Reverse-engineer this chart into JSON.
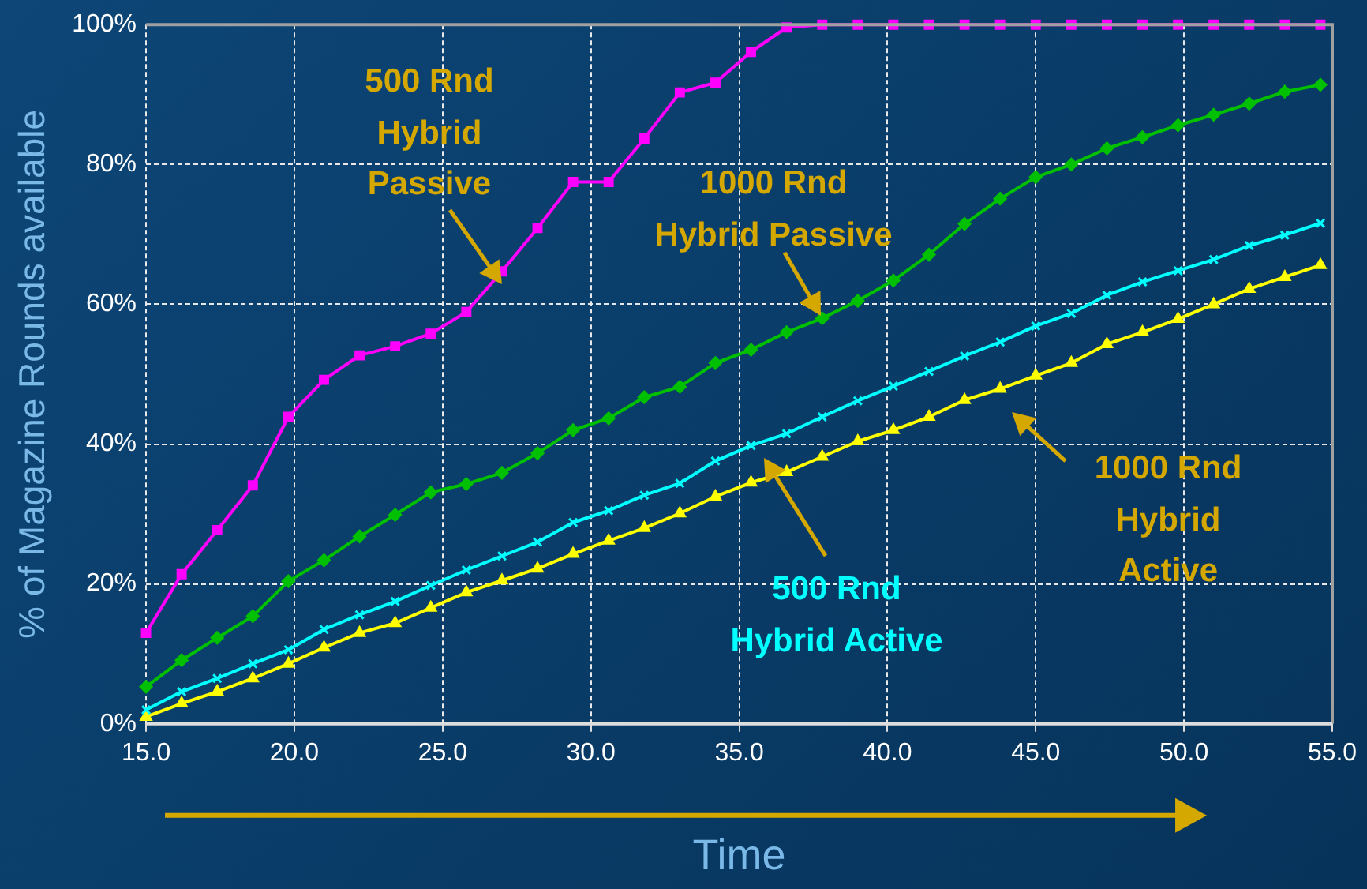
{
  "chart_data": {
    "type": "line",
    "xlabel": "Time",
    "ylabel": "% of Magazine Rounds available",
    "x": [
      15,
      16.2,
      17.4,
      18.6,
      19.8,
      21,
      22.2,
      23.4,
      24.6,
      25.8,
      27,
      28.2,
      29.4,
      30.6,
      31.8,
      33,
      34.2,
      35.4,
      36.6,
      37.8,
      39,
      40.2,
      41.4,
      42.6,
      43.8,
      45,
      46.2,
      47.4,
      48.6,
      49.8,
      51,
      52.2,
      53.4,
      54.6
    ],
    "series": [
      {
        "name": "500 Rnd Hybrid Passive",
        "color": "#ff00ff",
        "marker": "square",
        "values": [
          13,
          21.4,
          27.7,
          34.1,
          43.9,
          49.2,
          52.7,
          54,
          55.8,
          58.9,
          64.7,
          70.9,
          77.5,
          77.5,
          83.7,
          90.3,
          91.7,
          96.1,
          99.6,
          100,
          100,
          100,
          100,
          100,
          100,
          100,
          100,
          100,
          100,
          100,
          100,
          100,
          100,
          100
        ]
      },
      {
        "name": "1000 Rnd Hybrid Passive",
        "color": "#00c000",
        "marker": "diamond",
        "values": [
          5.3,
          9.1,
          12.3,
          15.4,
          20.4,
          23.4,
          26.8,
          29.9,
          33.1,
          34.3,
          35.9,
          38.7,
          42,
          43.7,
          46.7,
          48.2,
          51.6,
          53.5,
          56,
          58,
          60.5,
          63.4,
          67.1,
          71.5,
          75.1,
          78.2,
          80,
          82.3,
          83.9,
          85.6,
          87.1,
          88.7,
          90.4,
          91.4
        ]
      },
      {
        "name": "500 Rnd Hybrid Active",
        "color": "#00ffff",
        "marker": "cross",
        "values": [
          2,
          4.6,
          6.5,
          8.6,
          10.6,
          13.5,
          15.6,
          17.5,
          19.8,
          22,
          24,
          26,
          28.8,
          30.5,
          32.7,
          34.4,
          37.6,
          39.8,
          41.5,
          43.9,
          46.2,
          48.3,
          50.4,
          52.6,
          54.6,
          56.9,
          58.7,
          61.3,
          63.2,
          64.8,
          66.4,
          68.4,
          69.9,
          71.6
        ]
      },
      {
        "name": "1000 Rnd Hybrid Active",
        "color": "#ffff00",
        "marker": "triangle",
        "values": [
          1,
          2.9,
          4.6,
          6.5,
          8.6,
          10.9,
          13,
          14.4,
          16.6,
          18.8,
          20.5,
          22.2,
          24.3,
          26.2,
          28,
          30.1,
          32.5,
          34.5,
          36,
          38.2,
          40.4,
          42,
          43.9,
          46.3,
          47.9,
          49.8,
          51.6,
          54.3,
          56,
          57.9,
          60,
          62.2,
          63.9,
          65.6
        ]
      }
    ],
    "xlim": [
      15,
      55
    ],
    "xticks": [
      {
        "value": 15,
        "label": "15.0"
      },
      {
        "value": 20,
        "label": "20.0"
      },
      {
        "value": 25,
        "label": "25.0"
      },
      {
        "value": 30,
        "label": "30.0"
      },
      {
        "value": 35,
        "label": "35.0"
      },
      {
        "value": 40,
        "label": "40.0"
      },
      {
        "value": 45,
        "label": "45.0"
      },
      {
        "value": 50,
        "label": "50.0"
      },
      {
        "value": 55,
        "label": "55.0"
      }
    ],
    "ylim": [
      0,
      100
    ],
    "yticks": [
      {
        "value": 0,
        "label": "0%"
      },
      {
        "value": 20,
        "label": "20%"
      },
      {
        "value": 40,
        "label": "40%"
      },
      {
        "value": 60,
        "label": "60%"
      },
      {
        "value": 80,
        "label": "80%"
      },
      {
        "value": 100,
        "label": "100%"
      }
    ],
    "grid": true,
    "legend": false,
    "line_style": "solid"
  }
}
